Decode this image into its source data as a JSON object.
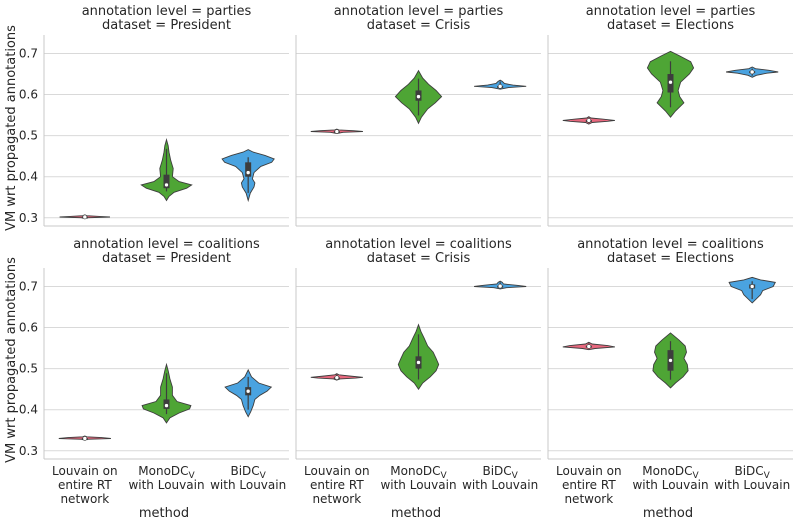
{
  "chart_data": {
    "type": "violin",
    "ylabel": "VM wrt propagated annotations",
    "xlabel": "method",
    "ylim": [
      0.28,
      0.745
    ],
    "yticks": [
      0.3,
      0.4,
      0.5,
      0.6,
      0.7
    ],
    "ytick_labels": [
      "0.3",
      "0.4",
      "0.5",
      "0.6",
      "0.7"
    ],
    "categories": [
      {
        "lines": [
          "Louvain on",
          "entire RT",
          "network"
        ]
      },
      {
        "lines": [
          "MonoDC",
          "with Louvain"
        ],
        "subscript": "V"
      },
      {
        "lines": [
          "BiDC",
          "with Louvain"
        ],
        "subscript": "V"
      }
    ],
    "colors": [
      "#e8687e",
      "#4ea535",
      "#4aa3e0"
    ],
    "panels": [
      {
        "title1": "annotation level = parties",
        "title2": "dataset = President",
        "violins": [
          {
            "median": 0.302,
            "q1": 0.301,
            "q3": 0.303,
            "profile": [
              [
                0.298,
                0
              ],
              [
                0.3,
                0.04
              ],
              [
                0.302,
                0.6
              ],
              [
                0.303,
                0.4
              ],
              [
                0.305,
                0.05
              ],
              [
                0.307,
                0
              ]
            ]
          },
          {
            "median": 0.38,
            "q1": 0.372,
            "q3": 0.405,
            "profile": [
              [
                0.342,
                0
              ],
              [
                0.352,
                0.06
              ],
              [
                0.362,
                0.18
              ],
              [
                0.372,
                0.48
              ],
              [
                0.38,
                0.6
              ],
              [
                0.388,
                0.3
              ],
              [
                0.4,
                0.14
              ],
              [
                0.42,
                0.16
              ],
              [
                0.44,
                0.1
              ],
              [
                0.46,
                0.06
              ],
              [
                0.475,
                0.04
              ],
              [
                0.49,
                0
              ]
            ]
          },
          {
            "median": 0.41,
            "q1": 0.4,
            "q3": 0.435,
            "profile": [
              [
                0.342,
                0
              ],
              [
                0.36,
                0.05
              ],
              [
                0.375,
                0.14
              ],
              [
                0.385,
                0.16
              ],
              [
                0.395,
                0.1
              ],
              [
                0.41,
                0.14
              ],
              [
                0.425,
                0.3
              ],
              [
                0.435,
                0.56
              ],
              [
                0.443,
                0.62
              ],
              [
                0.452,
                0.4
              ],
              [
                0.46,
                0.12
              ],
              [
                0.466,
                0
              ]
            ]
          }
        ]
      },
      {
        "title1": "annotation level = parties",
        "title2": "dataset = Crisis",
        "violins": [
          {
            "median": 0.51,
            "q1": 0.509,
            "q3": 0.511,
            "profile": [
              [
                0.505,
                0
              ],
              [
                0.508,
                0.15
              ],
              [
                0.51,
                0.62
              ],
              [
                0.512,
                0.4
              ],
              [
                0.514,
                0.05
              ],
              [
                0.516,
                0
              ]
            ]
          },
          {
            "median": 0.595,
            "q1": 0.585,
            "q3": 0.61,
            "profile": [
              [
                0.53,
                0
              ],
              [
                0.545,
                0.07
              ],
              [
                0.565,
                0.22
              ],
              [
                0.58,
                0.4
              ],
              [
                0.595,
                0.55
              ],
              [
                0.61,
                0.42
              ],
              [
                0.625,
                0.24
              ],
              [
                0.64,
                0.1
              ],
              [
                0.658,
                0
              ]
            ]
          },
          {
            "median": 0.62,
            "q1": 0.619,
            "q3": 0.621,
            "profile": [
              [
                0.613,
                0
              ],
              [
                0.617,
                0.2
              ],
              [
                0.62,
                0.62
              ],
              [
                0.623,
                0.3
              ],
              [
                0.627,
                0.1
              ],
              [
                0.632,
                0.05
              ],
              [
                0.635,
                0
              ]
            ]
          }
        ]
      },
      {
        "title1": "annotation level = parties",
        "title2": "dataset = Elections",
        "violins": [
          {
            "median": 0.537,
            "q1": 0.536,
            "q3": 0.538,
            "profile": [
              [
                0.528,
                0
              ],
              [
                0.532,
                0.08
              ],
              [
                0.535,
                0.45
              ],
              [
                0.537,
                0.62
              ],
              [
                0.54,
                0.35
              ],
              [
                0.543,
                0.05
              ],
              [
                0.546,
                0
              ]
            ]
          },
          {
            "median": 0.63,
            "q1": 0.605,
            "q3": 0.65,
            "profile": [
              [
                0.545,
                0
              ],
              [
                0.56,
                0.12
              ],
              [
                0.58,
                0.32
              ],
              [
                0.595,
                0.22
              ],
              [
                0.61,
                0.18
              ],
              [
                0.63,
                0.24
              ],
              [
                0.65,
                0.45
              ],
              [
                0.665,
                0.55
              ],
              [
                0.68,
                0.48
              ],
              [
                0.695,
                0.2
              ],
              [
                0.705,
                0
              ]
            ]
          },
          {
            "median": 0.655,
            "q1": 0.653,
            "q3": 0.657,
            "profile": [
              [
                0.642,
                0
              ],
              [
                0.647,
                0.1
              ],
              [
                0.652,
                0.35
              ],
              [
                0.655,
                0.62
              ],
              [
                0.659,
                0.4
              ],
              [
                0.663,
                0.08
              ],
              [
                0.667,
                0
              ]
            ]
          }
        ]
      },
      {
        "title1": "annotation level = coalitions",
        "title2": "dataset = President",
        "violins": [
          {
            "median": 0.33,
            "q1": 0.329,
            "q3": 0.331,
            "profile": [
              [
                0.326,
                0
              ],
              [
                0.328,
                0.05
              ],
              [
                0.33,
                0.62
              ],
              [
                0.332,
                0.4
              ],
              [
                0.334,
                0.05
              ],
              [
                0.336,
                0
              ]
            ]
          },
          {
            "median": 0.41,
            "q1": 0.402,
            "q3": 0.425,
            "profile": [
              [
                0.368,
                0
              ],
              [
                0.38,
                0.08
              ],
              [
                0.392,
                0.3
              ],
              [
                0.402,
                0.55
              ],
              [
                0.41,
                0.58
              ],
              [
                0.42,
                0.25
              ],
              [
                0.435,
                0.14
              ],
              [
                0.455,
                0.14
              ],
              [
                0.475,
                0.08
              ],
              [
                0.495,
                0.04
              ],
              [
                0.51,
                0
              ]
            ]
          },
          {
            "median": 0.445,
            "q1": 0.435,
            "q3": 0.455,
            "profile": [
              [
                0.383,
                0
              ],
              [
                0.395,
                0.06
              ],
              [
                0.41,
                0.12
              ],
              [
                0.425,
                0.16
              ],
              [
                0.435,
                0.28
              ],
              [
                0.445,
                0.45
              ],
              [
                0.455,
                0.55
              ],
              [
                0.465,
                0.25
              ],
              [
                0.48,
                0.08
              ],
              [
                0.497,
                0
              ]
            ]
          }
        ]
      },
      {
        "title1": "annotation level = coalitions",
        "title2": "dataset = Crisis",
        "violins": [
          {
            "median": 0.478,
            "q1": 0.477,
            "q3": 0.479,
            "profile": [
              [
                0.472,
                0
              ],
              [
                0.475,
                0.08
              ],
              [
                0.477,
                0.45
              ],
              [
                0.479,
                0.62
              ],
              [
                0.482,
                0.3
              ],
              [
                0.485,
                0.05
              ],
              [
                0.488,
                0
              ]
            ]
          },
          {
            "median": 0.515,
            "q1": 0.5,
            "q3": 0.53,
            "profile": [
              [
                0.45,
                0
              ],
              [
                0.465,
                0.1
              ],
              [
                0.48,
                0.28
              ],
              [
                0.495,
                0.42
              ],
              [
                0.51,
                0.48
              ],
              [
                0.525,
                0.42
              ],
              [
                0.54,
                0.35
              ],
              [
                0.555,
                0.22
              ],
              [
                0.575,
                0.13
              ],
              [
                0.59,
                0.06
              ],
              [
                0.607,
                0
              ]
            ]
          },
          {
            "median": 0.701,
            "q1": 0.7,
            "q3": 0.702,
            "profile": [
              [
                0.694,
                0
              ],
              [
                0.697,
                0.15
              ],
              [
                0.7,
                0.62
              ],
              [
                0.703,
                0.4
              ],
              [
                0.706,
                0.08
              ],
              [
                0.71,
                0.05
              ],
              [
                0.713,
                0
              ]
            ]
          }
        ]
      },
      {
        "title1": "annotation level = coalitions",
        "title2": "dataset = Elections",
        "violins": [
          {
            "median": 0.554,
            "q1": 0.552,
            "q3": 0.556,
            "profile": [
              [
                0.546,
                0
              ],
              [
                0.549,
                0.15
              ],
              [
                0.553,
                0.62
              ],
              [
                0.556,
                0.45
              ],
              [
                0.56,
                0.08
              ],
              [
                0.564,
                0
              ]
            ]
          },
          {
            "median": 0.52,
            "q1": 0.495,
            "q3": 0.545,
            "profile": [
              [
                0.453,
                0
              ],
              [
                0.465,
                0.12
              ],
              [
                0.48,
                0.3
              ],
              [
                0.495,
                0.42
              ],
              [
                0.51,
                0.4
              ],
              [
                0.525,
                0.32
              ],
              [
                0.54,
                0.38
              ],
              [
                0.555,
                0.35
              ],
              [
                0.57,
                0.2
              ],
              [
                0.587,
                0
              ]
            ]
          },
          {
            "median": 0.7,
            "q1": 0.695,
            "q3": 0.705,
            "profile": [
              [
                0.66,
                0
              ],
              [
                0.67,
                0.1
              ],
              [
                0.68,
                0.2
              ],
              [
                0.69,
                0.25
              ],
              [
                0.7,
                0.5
              ],
              [
                0.71,
                0.55
              ],
              [
                0.716,
                0.2
              ],
              [
                0.722,
                0
              ]
            ]
          }
        ]
      }
    ]
  }
}
